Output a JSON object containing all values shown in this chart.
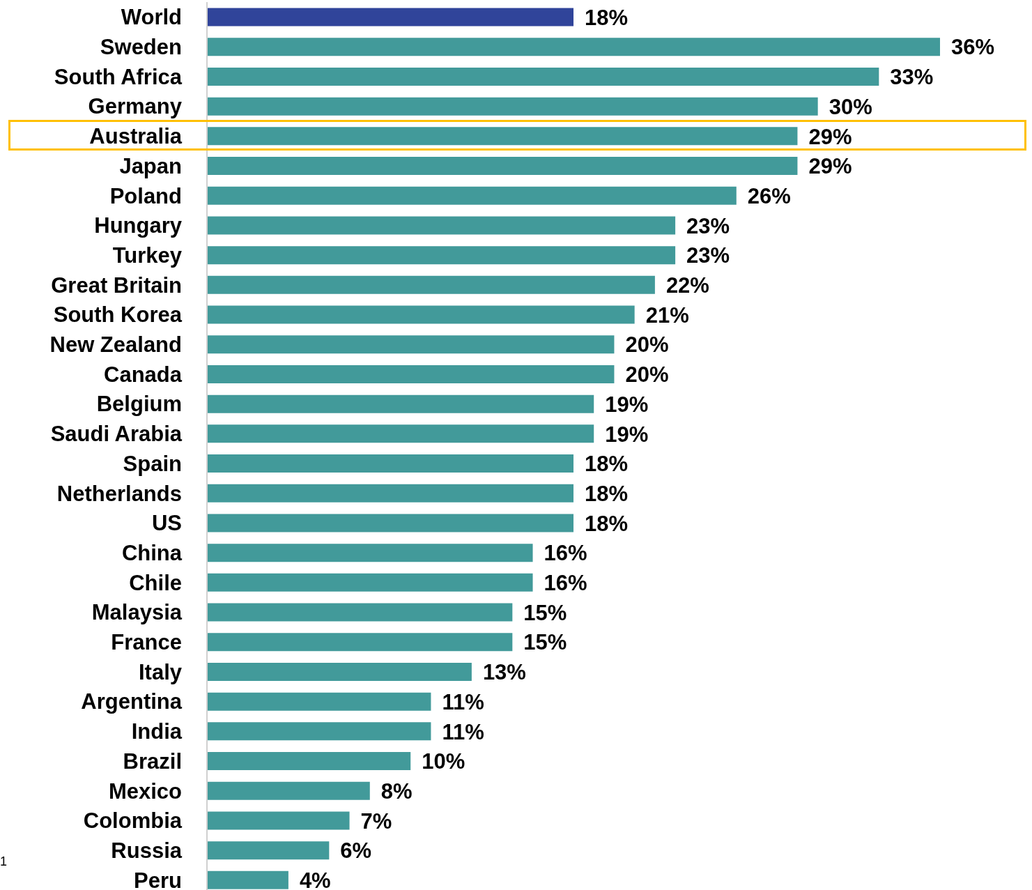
{
  "chart_data": {
    "type": "bar",
    "orientation": "horizontal",
    "categories": [
      "World",
      "Sweden",
      "South Africa",
      "Germany",
      "Australia",
      "Japan",
      "Poland",
      "Hungary",
      "Turkey",
      "Great Britain",
      "South Korea",
      "New Zealand",
      "Canada",
      "Belgium",
      "Saudi Arabia",
      "Spain",
      "Netherlands",
      "US",
      "China",
      "Chile",
      "Malaysia",
      "France",
      "Italy",
      "Argentina",
      "India",
      "Brazil",
      "Mexico",
      "Colombia",
      "Russia",
      "Peru"
    ],
    "values": [
      18,
      36,
      33,
      30,
      29,
      29,
      26,
      23,
      23,
      22,
      21,
      20,
      20,
      19,
      19,
      18,
      18,
      18,
      16,
      16,
      15,
      15,
      13,
      11,
      11,
      10,
      8,
      7,
      6,
      4
    ],
    "value_labels": [
      "18%",
      "36%",
      "33%",
      "30%",
      "29%",
      "29%",
      "26%",
      "23%",
      "23%",
      "22%",
      "21%",
      "20%",
      "20%",
      "19%",
      "19%",
      "18%",
      "18%",
      "18%",
      "16%",
      "16%",
      "15%",
      "15%",
      "13%",
      "11%",
      "11%",
      "10%",
      "8%",
      "7%",
      "6%",
      "4%"
    ],
    "colors": [
      "#30449a",
      "#429a9a",
      "#429a9a",
      "#429a9a",
      "#429a9a",
      "#429a9a",
      "#429a9a",
      "#429a9a",
      "#429a9a",
      "#429a9a",
      "#429a9a",
      "#429a9a",
      "#429a9a",
      "#429a9a",
      "#429a9a",
      "#429a9a",
      "#429a9a",
      "#429a9a",
      "#429a9a",
      "#429a9a",
      "#429a9a",
      "#429a9a",
      "#429a9a",
      "#429a9a",
      "#429a9a",
      "#429a9a",
      "#429a9a",
      "#429a9a",
      "#429a9a",
      "#429a9a"
    ],
    "annotations": [
      "1"
    ]
  }
}
